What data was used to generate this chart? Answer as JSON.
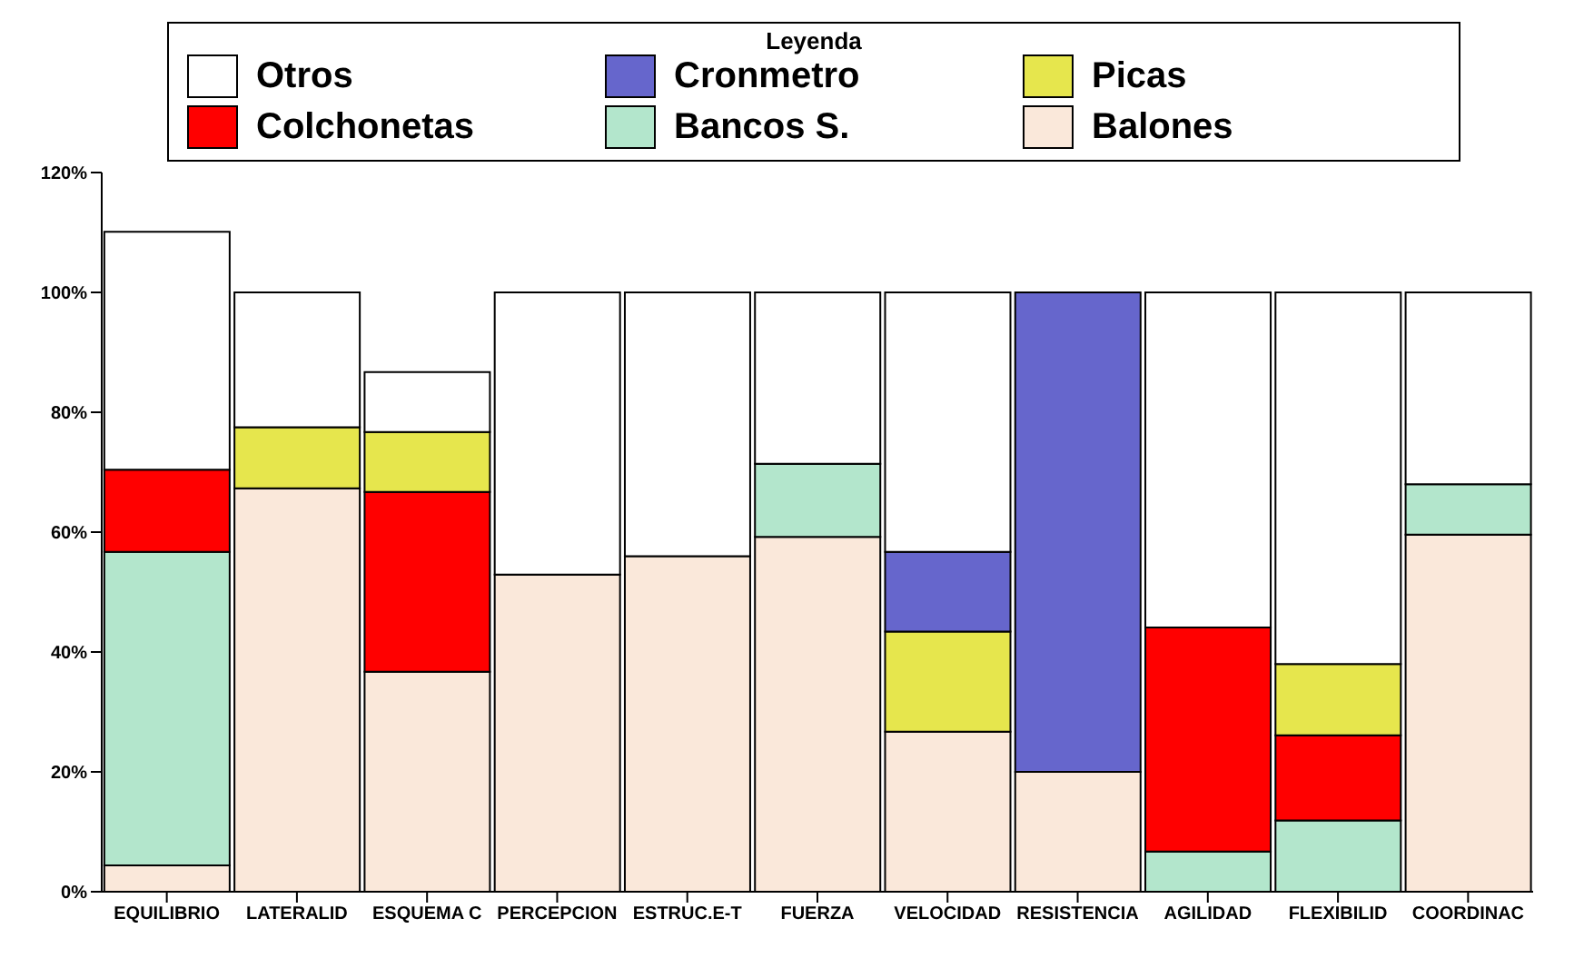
{
  "chart_data": {
    "type": "bar",
    "stacked": true,
    "legend_title": "Leyenda",
    "legend": "top",
    "categories": [
      "EQUILIBRIO",
      "LATERALID",
      "ESQUEMA C",
      "PERCEPCION",
      "ESTRUC.E-T",
      "FUERZA",
      "VELOCIDAD",
      "RESISTENCIA",
      "AGILIDAD",
      "FLEXIBILID",
      "COORDINAC"
    ],
    "series": [
      {
        "name": "Balones",
        "color": "#fae8da",
        "values": [
          4.4,
          67.3,
          36.7,
          52.9,
          56,
          59.2,
          26.7,
          20,
          0,
          0,
          59.6
        ]
      },
      {
        "name": "Bancos S.",
        "color": "#b3e6cc",
        "values": [
          52.3,
          0,
          0,
          0,
          0,
          12.2,
          0,
          0,
          6.7,
          11.9,
          8.4
        ]
      },
      {
        "name": "Colchonetas",
        "color": "#ff0000",
        "values": [
          13.7,
          0,
          30,
          0,
          0,
          0,
          0,
          0,
          37.4,
          14.2,
          0
        ]
      },
      {
        "name": "Picas",
        "color": "#e6e64d",
        "values": [
          0,
          10.2,
          10,
          0,
          0,
          0,
          16.7,
          0,
          0,
          11.9,
          0
        ]
      },
      {
        "name": "Cronmetro",
        "color": "#6666cc",
        "values": [
          0,
          0,
          0,
          0,
          0,
          0,
          13.3,
          80,
          0,
          0,
          0
        ]
      },
      {
        "name": "Otros",
        "color": "#ffffff",
        "values": [
          39.7,
          22.5,
          10,
          47.1,
          44,
          28.6,
          43.3,
          0,
          55.9,
          62,
          32
        ]
      }
    ],
    "ylim": [
      0,
      120
    ],
    "yticks": [
      {
        "value": 0,
        "label": "0%"
      },
      {
        "value": 20,
        "label": "20%"
      },
      {
        "value": 40,
        "label": "40%"
      },
      {
        "value": 60,
        "label": "60%"
      },
      {
        "value": 80,
        "label": "80%"
      },
      {
        "value": 100,
        "label": "100%"
      },
      {
        "value": 120,
        "label": "120%"
      }
    ]
  }
}
